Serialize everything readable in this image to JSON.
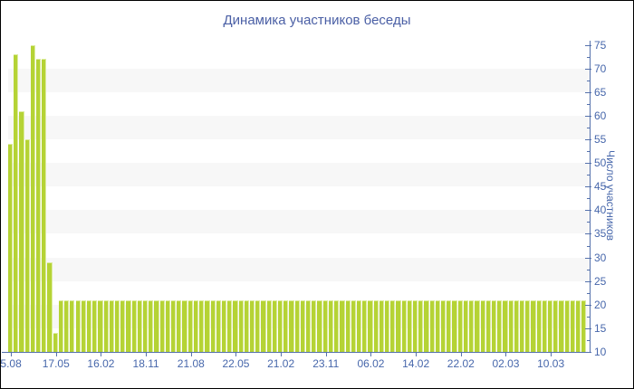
{
  "chart_data": {
    "type": "bar",
    "title": "Динамика участников беседы",
    "ylabel": "Число участников",
    "xlabel": "",
    "ylim": [
      10,
      75
    ],
    "y_tick_step": 5,
    "y_minor_tick_step": 2.5,
    "grid": "alternating horizontal stripes",
    "legend": "none",
    "x_tick_labels": [
      "5.08",
      "17.05",
      "16.02",
      "18.11",
      "21.08",
      "22.05",
      "21.02",
      "23.11",
      "06.02",
      "14.02",
      "22.02",
      "02.03",
      "10.03"
    ],
    "x_tick_every_n_bars": 8,
    "values": [
      54,
      73,
      61,
      55,
      75,
      72,
      72,
      29,
      14,
      21,
      21,
      21,
      21,
      21,
      21,
      21,
      21,
      21,
      21,
      21,
      21,
      21,
      21,
      21,
      21,
      21,
      21,
      21,
      21,
      21,
      21,
      21,
      21,
      21,
      21,
      21,
      21,
      21,
      21,
      21,
      21,
      21,
      21,
      21,
      21,
      21,
      21,
      21,
      21,
      21,
      21,
      21,
      21,
      21,
      21,
      21,
      21,
      21,
      21,
      21,
      21,
      21,
      21,
      21,
      21,
      21,
      21,
      21,
      21,
      21,
      21,
      21,
      21,
      21,
      21,
      21,
      21,
      21,
      21,
      21,
      21,
      21,
      21,
      21,
      21,
      21,
      21,
      21,
      21,
      21,
      21,
      21,
      21,
      21,
      21,
      21,
      21,
      21,
      21,
      21,
      21,
      21,
      21
    ],
    "colors": {
      "bar": "#b5d335",
      "bar_highlight": "#dcec9e",
      "stripe": "#f7f7f7",
      "axis": "#5571ac",
      "tick_text": "#4767ab",
      "title_text": "#4a5fa5",
      "background": "#ffffff"
    }
  }
}
